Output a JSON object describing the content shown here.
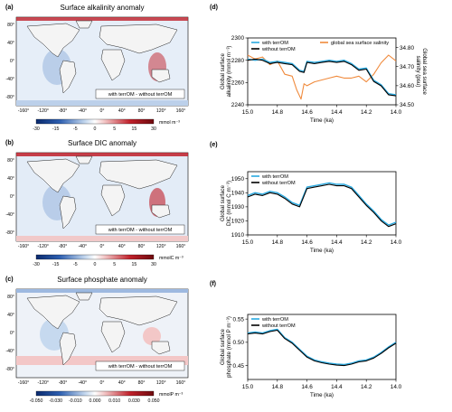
{
  "map_panels": [
    {
      "label": "(a)",
      "title": "Surface alkalinity anomaly",
      "annotation": "with terrOM - without terrOM",
      "colorbar": {
        "ticks": [
          "-30",
          "-15",
          "-5",
          "0",
          "5",
          "15",
          "30"
        ],
        "unit": "mmol m⁻³"
      }
    },
    {
      "label": "(b)",
      "title": "Surface DIC anomaly",
      "annotation": "with terrOM - without terrOM",
      "colorbar": {
        "ticks": [
          "-30",
          "-15",
          "-5",
          "0",
          "5",
          "15",
          "30"
        ],
        "unit": "mmolC m⁻³"
      }
    },
    {
      "label": "(c)",
      "title": "Surface phosphate anomaly",
      "annotation": "with terrOM - without terrOM",
      "colorbar": {
        "ticks": [
          "-0.050",
          "-0.030",
          "-0.010",
          "0.000",
          "0.010",
          "0.030",
          "0.050"
        ],
        "unit": "mmolP m⁻³"
      }
    }
  ],
  "map_axes": {
    "lon_ticks": [
      "-160°",
      "-120°",
      "-80°",
      "-40°",
      "0°",
      "40°",
      "80°",
      "120°",
      "160°"
    ],
    "lat_ticks": [
      "80°",
      "40°",
      "0°",
      "-40°",
      "-80°"
    ]
  },
  "colors": {
    "with": "#29a9e0",
    "without": "#000000",
    "salinity": "#f08a3c",
    "neg": "#2d5fb0",
    "pos": "#c0202a"
  },
  "chart_data": [
    {
      "type": "line",
      "label": "(d)",
      "xlabel": "Time (ka)",
      "ylabel": "Global surface\nalkalinity (mmol m⁻³)",
      "y2label": "Global sea surface\nsalinity (psu)",
      "xlim": [
        15.0,
        14.0
      ],
      "ylim": [
        2240,
        2300
      ],
      "y2lim": [
        34.5,
        34.85
      ],
      "xticks": [
        15.0,
        14.8,
        14.6,
        14.4,
        14.2,
        14.0
      ],
      "yticks": [
        2240,
        2260,
        2280,
        2300
      ],
      "y2ticks": [
        34.5,
        34.6,
        34.7,
        34.8
      ],
      "legend": [
        "with terrOM",
        "without terrOM",
        "global sea surface salinity"
      ],
      "series": [
        {
          "name": "with terrOM",
          "axis": "left",
          "x": [
            15.0,
            14.95,
            14.9,
            14.85,
            14.8,
            14.75,
            14.7,
            14.65,
            14.62,
            14.6,
            14.55,
            14.5,
            14.45,
            14.4,
            14.35,
            14.3,
            14.25,
            14.2,
            14.15,
            14.1,
            14.05,
            14.0
          ],
          "y": [
            2281,
            2280,
            2281,
            2278,
            2279,
            2278,
            2277,
            2271,
            2270,
            2279,
            2278,
            2279,
            2280,
            2279,
            2280,
            2277,
            2272,
            2273,
            2262,
            2258,
            2250,
            2249
          ]
        },
        {
          "name": "without terrOM",
          "axis": "left",
          "x": [
            15.0,
            14.95,
            14.9,
            14.85,
            14.8,
            14.75,
            14.7,
            14.65,
            14.62,
            14.6,
            14.55,
            14.5,
            14.45,
            14.4,
            14.35,
            14.3,
            14.25,
            14.2,
            14.15,
            14.1,
            14.05,
            14.0
          ],
          "y": [
            2280,
            2281,
            2280,
            2277,
            2278,
            2277,
            2276,
            2270,
            2269,
            2278,
            2277,
            2278,
            2279,
            2278,
            2279,
            2276,
            2271,
            2272,
            2261,
            2257,
            2249,
            2248
          ]
        },
        {
          "name": "global sea surface salinity",
          "axis": "right",
          "x": [
            15.0,
            14.95,
            14.9,
            14.85,
            14.8,
            14.75,
            14.7,
            14.67,
            14.64,
            14.62,
            14.6,
            14.55,
            14.5,
            14.45,
            14.4,
            14.35,
            14.3,
            14.25,
            14.2,
            14.15,
            14.1,
            14.05,
            14.0
          ],
          "y": [
            34.76,
            34.74,
            34.75,
            34.71,
            34.73,
            34.66,
            34.65,
            34.58,
            34.53,
            34.61,
            34.6,
            34.62,
            34.63,
            34.64,
            34.65,
            34.64,
            34.64,
            34.65,
            34.62,
            34.66,
            34.72,
            34.76,
            34.73
          ]
        }
      ]
    },
    {
      "type": "line",
      "label": "(e)",
      "xlabel": "Time (ka)",
      "ylabel": "Global surface\nDIC (mmol C m⁻³)",
      "xlim": [
        15.0,
        14.0
      ],
      "ylim": [
        1910,
        1955
      ],
      "xticks": [
        15.0,
        14.8,
        14.6,
        14.4,
        14.2,
        14.0
      ],
      "yticks": [
        1910,
        1920,
        1930,
        1940,
        1950
      ],
      "legend": [
        "with terrOM",
        "without terrOM"
      ],
      "series": [
        {
          "name": "with terrOM",
          "x": [
            15.0,
            14.95,
            14.9,
            14.85,
            14.8,
            14.75,
            14.7,
            14.65,
            14.6,
            14.55,
            14.5,
            14.45,
            14.4,
            14.35,
            14.3,
            14.25,
            14.2,
            14.15,
            14.1,
            14.05,
            14.0
          ],
          "y": [
            1938,
            1940,
            1939,
            1941,
            1940,
            1937,
            1933,
            1931,
            1944,
            1945,
            1946,
            1947,
            1946,
            1946,
            1944,
            1938,
            1932,
            1927,
            1921,
            1917,
            1919
          ]
        },
        {
          "name": "without terrOM",
          "x": [
            15.0,
            14.95,
            14.9,
            14.85,
            14.8,
            14.75,
            14.7,
            14.65,
            14.6,
            14.55,
            14.5,
            14.45,
            14.4,
            14.35,
            14.3,
            14.25,
            14.2,
            14.15,
            14.1,
            14.05,
            14.0
          ],
          "y": [
            1937,
            1939,
            1938,
            1940,
            1939,
            1936,
            1932,
            1930,
            1943,
            1944,
            1945,
            1946,
            1945,
            1945,
            1943,
            1937,
            1931,
            1926,
            1920,
            1916,
            1918
          ]
        }
      ]
    },
    {
      "type": "line",
      "label": "(f)",
      "xlabel": "Time (ka)",
      "ylabel": "Global surface\nphosphate (mmol P m⁻³)",
      "xlim": [
        15.0,
        14.0
      ],
      "ylim": [
        0.42,
        0.56
      ],
      "xticks": [
        15.0,
        14.8,
        14.6,
        14.4,
        14.2,
        14.0
      ],
      "yticks": [
        0.45,
        0.5,
        0.55
      ],
      "legend": [
        "with terrOM",
        "without terrOM"
      ],
      "series": [
        {
          "name": "with terrOM",
          "x": [
            15.0,
            14.95,
            14.9,
            14.85,
            14.8,
            14.75,
            14.7,
            14.65,
            14.6,
            14.55,
            14.5,
            14.45,
            14.4,
            14.35,
            14.3,
            14.25,
            14.2,
            14.15,
            14.1,
            14.05,
            14.0
          ],
          "y": [
            0.52,
            0.522,
            0.52,
            0.525,
            0.528,
            0.51,
            0.5,
            0.485,
            0.47,
            0.462,
            0.458,
            0.455,
            0.453,
            0.452,
            0.455,
            0.46,
            0.462,
            0.468,
            0.478,
            0.49,
            0.5
          ]
        },
        {
          "name": "without terrOM",
          "x": [
            15.0,
            14.95,
            14.9,
            14.85,
            14.8,
            14.75,
            14.7,
            14.65,
            14.6,
            14.55,
            14.5,
            14.45,
            14.4,
            14.35,
            14.3,
            14.25,
            14.2,
            14.15,
            14.1,
            14.05,
            14.0
          ],
          "y": [
            0.518,
            0.52,
            0.518,
            0.523,
            0.526,
            0.508,
            0.498,
            0.483,
            0.468,
            0.46,
            0.456,
            0.453,
            0.451,
            0.45,
            0.453,
            0.458,
            0.46,
            0.466,
            0.476,
            0.488,
            0.498
          ]
        }
      ]
    }
  ]
}
